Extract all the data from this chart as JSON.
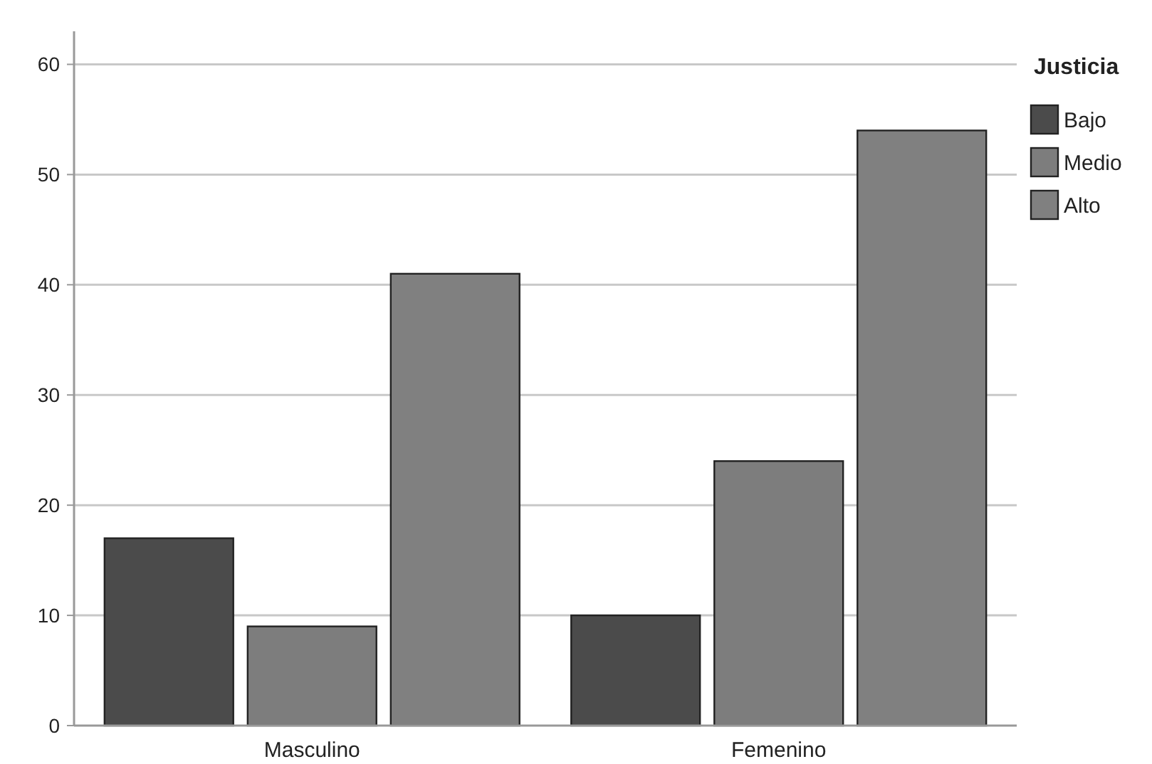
{
  "chart_data": {
    "type": "bar",
    "categories": [
      "Masculino",
      "Femenino"
    ],
    "legend_title": "Justicia",
    "legend": "top right",
    "grid": "y",
    "ylim": [
      0,
      63
    ],
    "yticks": [
      0,
      10,
      20,
      30,
      40,
      50,
      60
    ],
    "series": [
      {
        "name": "Bajo",
        "color": "#4b4b4b",
        "values": [
          17,
          10
        ]
      },
      {
        "name": "Medio",
        "color": "#7d7d7d",
        "values": [
          9,
          24
        ]
      },
      {
        "name": "Alto",
        "color": "#808080",
        "values": [
          41,
          54
        ]
      }
    ]
  }
}
